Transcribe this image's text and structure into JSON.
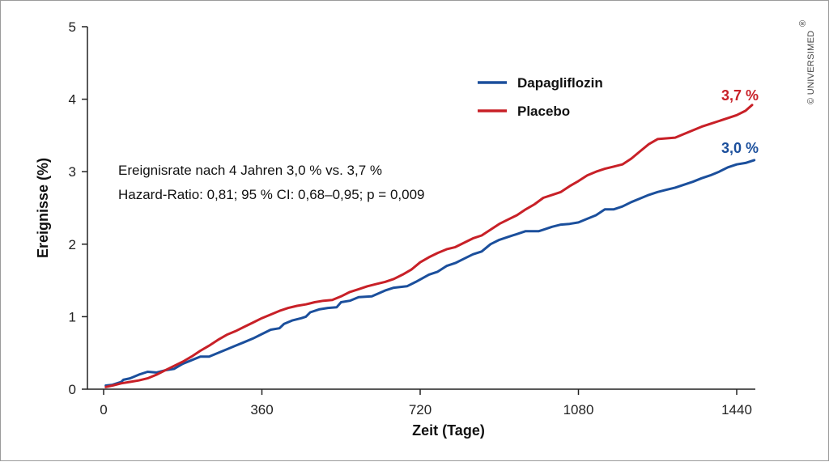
{
  "copyright": "© UNIVERSIMED",
  "copyright_mark": "®",
  "chart_data": {
    "type": "line",
    "xlabel": "Zeit (Tage)",
    "ylabel": "Ereignisse (%)",
    "xlim": [
      -20,
      1470
    ],
    "ylim": [
      0,
      5
    ],
    "x_ticks": [
      0,
      360,
      720,
      1080,
      1440
    ],
    "y_ticks": [
      0,
      1,
      2,
      3,
      4,
      5
    ],
    "x_tick_labels": [
      "0",
      "360",
      "720",
      "1080",
      "1440"
    ],
    "y_tick_labels": [
      "0",
      "1",
      "2",
      "3",
      "4",
      "5"
    ],
    "grid": false,
    "legend_position": "top-right",
    "annotations": [
      "Ereignisrate nach 4 Jahren 3,0 % vs. 3,7 %",
      "Hazard-Ratio: 0,81; 95 % CI: 0,68–0,95; p = 0,009"
    ],
    "series": [
      {
        "name": "Dapagliflozin",
        "color": "#1b4f9c",
        "end_label": "3,0 %",
        "points": [
          [
            5,
            0.05
          ],
          [
            20,
            0.06
          ],
          [
            40,
            0.1
          ],
          [
            45,
            0.13
          ],
          [
            60,
            0.15
          ],
          [
            80,
            0.2
          ],
          [
            100,
            0.24
          ],
          [
            120,
            0.23
          ],
          [
            140,
            0.26
          ],
          [
            160,
            0.28
          ],
          [
            180,
            0.35
          ],
          [
            200,
            0.4
          ],
          [
            220,
            0.45
          ],
          [
            240,
            0.45
          ],
          [
            260,
            0.5
          ],
          [
            280,
            0.55
          ],
          [
            300,
            0.6
          ],
          [
            320,
            0.65
          ],
          [
            340,
            0.7
          ],
          [
            360,
            0.76
          ],
          [
            380,
            0.82
          ],
          [
            400,
            0.84
          ],
          [
            410,
            0.9
          ],
          [
            430,
            0.95
          ],
          [
            450,
            0.98
          ],
          [
            460,
            1.0
          ],
          [
            470,
            1.06
          ],
          [
            490,
            1.1
          ],
          [
            510,
            1.12
          ],
          [
            530,
            1.13
          ],
          [
            540,
            1.2
          ],
          [
            560,
            1.22
          ],
          [
            580,
            1.27
          ],
          [
            610,
            1.28
          ],
          [
            640,
            1.36
          ],
          [
            660,
            1.4
          ],
          [
            690,
            1.42
          ],
          [
            710,
            1.48
          ],
          [
            740,
            1.58
          ],
          [
            760,
            1.62
          ],
          [
            780,
            1.7
          ],
          [
            800,
            1.74
          ],
          [
            820,
            1.8
          ],
          [
            840,
            1.86
          ],
          [
            860,
            1.9
          ],
          [
            880,
            2.0
          ],
          [
            900,
            2.06
          ],
          [
            920,
            2.1
          ],
          [
            940,
            2.14
          ],
          [
            960,
            2.18
          ],
          [
            990,
            2.18
          ],
          [
            1000,
            2.2
          ],
          [
            1020,
            2.24
          ],
          [
            1040,
            2.27
          ],
          [
            1060,
            2.28
          ],
          [
            1080,
            2.3
          ],
          [
            1100,
            2.35
          ],
          [
            1120,
            2.4
          ],
          [
            1140,
            2.48
          ],
          [
            1160,
            2.48
          ],
          [
            1180,
            2.52
          ],
          [
            1200,
            2.58
          ],
          [
            1220,
            2.63
          ],
          [
            1240,
            2.68
          ],
          [
            1260,
            2.72
          ],
          [
            1280,
            2.75
          ],
          [
            1300,
            2.78
          ],
          [
            1320,
            2.82
          ],
          [
            1340,
            2.86
          ],
          [
            1360,
            2.91
          ],
          [
            1380,
            2.95
          ],
          [
            1400,
            3.0
          ],
          [
            1420,
            3.06
          ],
          [
            1440,
            3.1
          ],
          [
            1460,
            3.12
          ],
          [
            1480,
            3.16
          ]
        ]
      },
      {
        "name": "Placebo",
        "color": "#c82027",
        "end_label": "3,7 %",
        "points": [
          [
            5,
            0.03
          ],
          [
            20,
            0.05
          ],
          [
            40,
            0.08
          ],
          [
            60,
            0.1
          ],
          [
            80,
            0.12
          ],
          [
            100,
            0.15
          ],
          [
            120,
            0.2
          ],
          [
            140,
            0.26
          ],
          [
            160,
            0.32
          ],
          [
            180,
            0.38
          ],
          [
            200,
            0.45
          ],
          [
            220,
            0.53
          ],
          [
            240,
            0.6
          ],
          [
            260,
            0.68
          ],
          [
            280,
            0.75
          ],
          [
            300,
            0.8
          ],
          [
            320,
            0.86
          ],
          [
            340,
            0.92
          ],
          [
            360,
            0.98
          ],
          [
            380,
            1.03
          ],
          [
            400,
            1.08
          ],
          [
            420,
            1.12
          ],
          [
            440,
            1.15
          ],
          [
            460,
            1.17
          ],
          [
            480,
            1.2
          ],
          [
            500,
            1.22
          ],
          [
            520,
            1.23
          ],
          [
            540,
            1.28
          ],
          [
            560,
            1.34
          ],
          [
            580,
            1.38
          ],
          [
            600,
            1.42
          ],
          [
            620,
            1.45
          ],
          [
            640,
            1.48
          ],
          [
            660,
            1.52
          ],
          [
            680,
            1.58
          ],
          [
            700,
            1.65
          ],
          [
            720,
            1.75
          ],
          [
            740,
            1.82
          ],
          [
            760,
            1.88
          ],
          [
            780,
            1.93
          ],
          [
            800,
            1.96
          ],
          [
            820,
            2.02
          ],
          [
            840,
            2.08
          ],
          [
            860,
            2.12
          ],
          [
            880,
            2.2
          ],
          [
            900,
            2.28
          ],
          [
            920,
            2.34
          ],
          [
            940,
            2.4
          ],
          [
            960,
            2.48
          ],
          [
            980,
            2.55
          ],
          [
            1000,
            2.64
          ],
          [
            1020,
            2.68
          ],
          [
            1040,
            2.72
          ],
          [
            1060,
            2.8
          ],
          [
            1080,
            2.87
          ],
          [
            1100,
            2.95
          ],
          [
            1120,
            3.0
          ],
          [
            1140,
            3.04
          ],
          [
            1160,
            3.07
          ],
          [
            1180,
            3.1
          ],
          [
            1200,
            3.18
          ],
          [
            1220,
            3.28
          ],
          [
            1240,
            3.38
          ],
          [
            1260,
            3.45
          ],
          [
            1280,
            3.46
          ],
          [
            1300,
            3.47
          ],
          [
            1320,
            3.52
          ],
          [
            1340,
            3.57
          ],
          [
            1360,
            3.62
          ],
          [
            1380,
            3.66
          ],
          [
            1400,
            3.7
          ],
          [
            1420,
            3.74
          ],
          [
            1440,
            3.78
          ],
          [
            1460,
            3.84
          ],
          [
            1475,
            3.92
          ]
        ]
      }
    ]
  }
}
